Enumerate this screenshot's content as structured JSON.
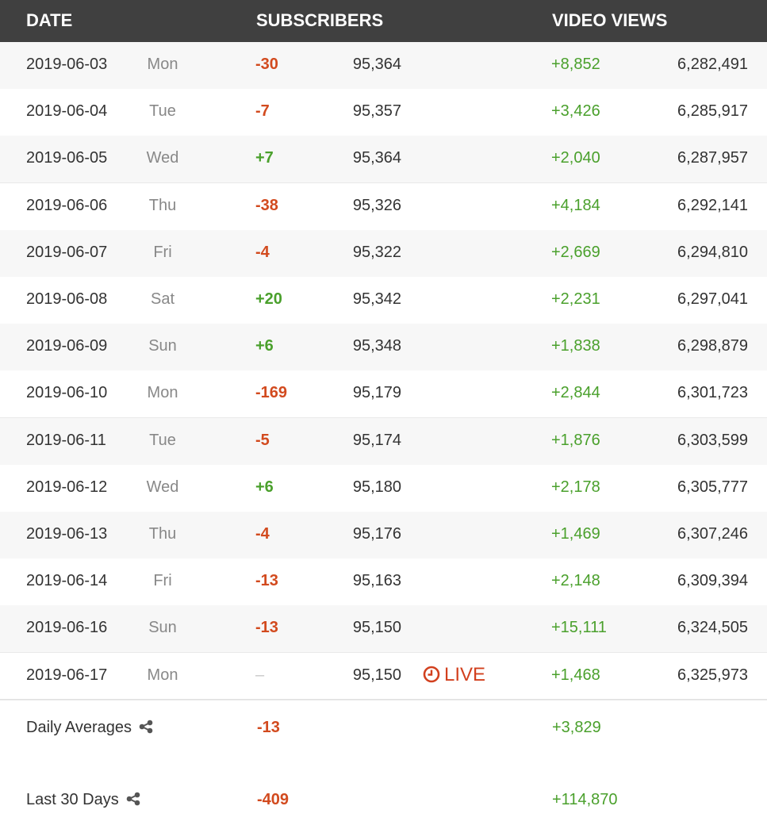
{
  "header": {
    "date_label": "DATE",
    "subscribers_label": "SUBSCRIBERS",
    "video_views_label": "VIDEO VIEWS"
  },
  "colors": {
    "negative": "#d24a1e",
    "positive": "#4aa02c",
    "header_bg": "#404040"
  },
  "rows": [
    {
      "date": "2019-06-03",
      "day": "Mon",
      "sub_delta": "-30",
      "subs": "95,364",
      "view_delta": "+8,852",
      "views": "6,282,491"
    },
    {
      "date": "2019-06-04",
      "day": "Tue",
      "sub_delta": "-7",
      "subs": "95,357",
      "view_delta": "+3,426",
      "views": "6,285,917"
    },
    {
      "date": "2019-06-05",
      "day": "Wed",
      "sub_delta": "+7",
      "subs": "95,364",
      "view_delta": "+2,040",
      "views": "6,287,957"
    },
    {
      "date": "2019-06-06",
      "day": "Thu",
      "sub_delta": "-38",
      "subs": "95,326",
      "view_delta": "+4,184",
      "views": "6,292,141"
    },
    {
      "date": "2019-06-07",
      "day": "Fri",
      "sub_delta": "-4",
      "subs": "95,322",
      "view_delta": "+2,669",
      "views": "6,294,810"
    },
    {
      "date": "2019-06-08",
      "day": "Sat",
      "sub_delta": "+20",
      "subs": "95,342",
      "view_delta": "+2,231",
      "views": "6,297,041"
    },
    {
      "date": "2019-06-09",
      "day": "Sun",
      "sub_delta": "+6",
      "subs": "95,348",
      "view_delta": "+1,838",
      "views": "6,298,879"
    },
    {
      "date": "2019-06-10",
      "day": "Mon",
      "sub_delta": "-169",
      "subs": "95,179",
      "view_delta": "+2,844",
      "views": "6,301,723"
    },
    {
      "date": "2019-06-11",
      "day": "Tue",
      "sub_delta": "-5",
      "subs": "95,174",
      "view_delta": "+1,876",
      "views": "6,303,599"
    },
    {
      "date": "2019-06-12",
      "day": "Wed",
      "sub_delta": "+6",
      "subs": "95,180",
      "view_delta": "+2,178",
      "views": "6,305,777"
    },
    {
      "date": "2019-06-13",
      "day": "Thu",
      "sub_delta": "-4",
      "subs": "95,176",
      "view_delta": "+1,469",
      "views": "6,307,246"
    },
    {
      "date": "2019-06-14",
      "day": "Fri",
      "sub_delta": "-13",
      "subs": "95,163",
      "view_delta": "+2,148",
      "views": "6,309,394"
    },
    {
      "date": "2019-06-16",
      "day": "Sun",
      "sub_delta": "-13",
      "subs": "95,150",
      "view_delta": "+15,111",
      "views": "6,324,505"
    },
    {
      "date": "2019-06-17",
      "day": "Mon",
      "sub_delta": "–",
      "subs": "95,150",
      "view_delta": "+1,468",
      "views": "6,325,973",
      "live": "LIVE"
    }
  ],
  "summary": {
    "daily_averages": {
      "label": "Daily Averages",
      "sub_delta": "-13",
      "view_delta": "+3,829"
    },
    "last_30_days": {
      "label": "Last 30 Days",
      "sub_delta": "-409",
      "view_delta": "+114,870"
    }
  },
  "icons": {
    "share": "share-icon",
    "live": "clock-icon"
  }
}
